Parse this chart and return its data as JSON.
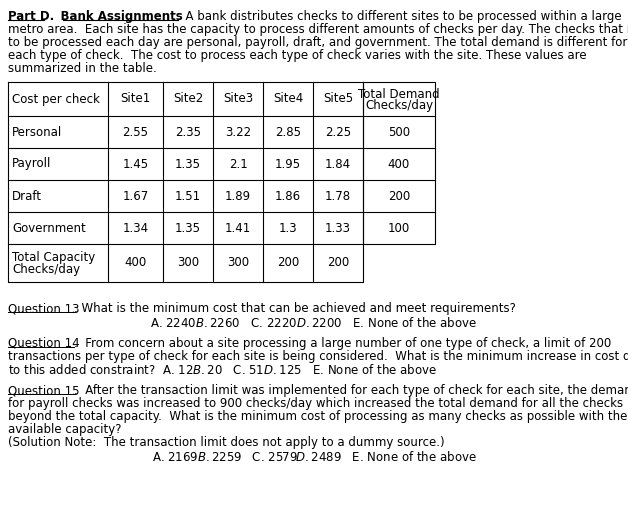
{
  "title_part": "Part D.",
  "title_section": "Bank Assignments",
  "bg_color": "#ffffff",
  "text_color": "#000000",
  "font_size": 8.5,
  "col_headers": [
    "Cost per check",
    "Site1",
    "Site2",
    "Site3",
    "Site4",
    "Site5",
    "Total Demand\nChecks/day"
  ],
  "rows": [
    [
      "Personal",
      "2.55",
      "2.35",
      "3.22",
      "2.85",
      "2.25",
      "500"
    ],
    [
      "Payroll",
      "1.45",
      "1.35",
      "2.1",
      "1.95",
      "1.84",
      "400"
    ],
    [
      "Draft",
      "1.67",
      "1.51",
      "1.89",
      "1.86",
      "1.78",
      "200"
    ],
    [
      "Government",
      "1.34",
      "1.35",
      "1.41",
      "1.3",
      "1.33",
      "100"
    ]
  ],
  "footer_label1": "Total Capacity",
  "footer_label2": "Checks/day",
  "footer_values": [
    "400",
    "300",
    "300",
    "200",
    "200"
  ],
  "para_lines": [
    ". A bank distributes checks to different sites to be processed within a large",
    "metro area.  Each site has the capacity to process different amounts of checks per day. The checks that need",
    "to be processed each day are personal, payroll, draft, and government. The total demand is different for",
    "each type of check.  The cost to process each type of check varies with the site. These values are",
    "summarized in the table."
  ],
  "q13_label": "Question 13",
  "q13_line1": ". What is the minimum cost that can be achieved and meet requirements?",
  "q13_answers": "A. $2240   B. $2260   C. $2220   D. $2200   E. None of the above",
  "q14_label": "Question 14",
  "q14_line1": ".  From concern about a site processing a large number of one type of check, a limit of 200",
  "q14_line2": "transactions per type of check for each site is being considered.  What is the minimum increase in cost due",
  "q14_line3": "to this added constraint?  A. $12   B. $20   C. $51   D. $125   E. None of the above",
  "q15_label": "Question 15",
  "q15_line1": ".  After the transaction limit was implemented for each type of check for each site, the demand",
  "q15_line2": "for payroll checks was increased to 900 checks/day which increased the total demand for all the checks",
  "q15_line3": "beyond the total capacity.  What is the minimum cost of processing as many checks as possible with the",
  "q15_line4": "available capacity?",
  "q15_line5": "(Solution Note:  The transaction limit does not apply to a dummy source.)",
  "q15_answers": "A. $2169   B. $2259   C. $2579   D. $2489   E. None of the above"
}
